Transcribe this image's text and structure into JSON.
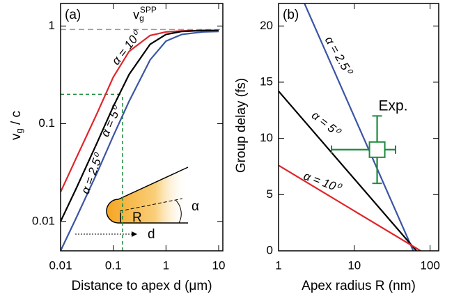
{
  "chart_data": [
    {
      "type": "line",
      "panel_label": "(a)",
      "x_label": "Distance to apex d (μm)",
      "y_label": {
        "main": "v",
        "sub": "g",
        "rest": " / c"
      },
      "xscale": "log",
      "yscale": "log",
      "xlim": [
        0.01,
        12
      ],
      "ylim": [
        0.005,
        1.7
      ],
      "xticks": [
        0.01,
        0.1,
        1,
        10
      ],
      "yticks": [
        0.01,
        0.1,
        1
      ],
      "hline": {
        "value": 0.92,
        "color": "#999999",
        "label": {
          "main": "v",
          "sub": "g",
          "sup": "SPP"
        }
      },
      "guide": {
        "x": 0.15,
        "y": 0.2,
        "color": "#1b8a3a"
      },
      "inset": {
        "R": "R",
        "alpha": "α",
        "d": "d"
      },
      "series": [
        {
          "label": "α = 10⁰",
          "color": "#e0252a",
          "x": [
            0.01,
            0.02,
            0.05,
            0.1,
            0.2,
            0.5,
            1,
            2,
            5,
            10
          ],
          "values": [
            0.02,
            0.045,
            0.13,
            0.3,
            0.55,
            0.8,
            0.87,
            0.89,
            0.9,
            0.9
          ]
        },
        {
          "label": "α = 5⁰",
          "color": "#000000",
          "x": [
            0.01,
            0.02,
            0.05,
            0.1,
            0.2,
            0.5,
            1,
            2,
            5,
            10
          ],
          "values": [
            0.01,
            0.022,
            0.065,
            0.15,
            0.32,
            0.65,
            0.82,
            0.88,
            0.9,
            0.9
          ]
        },
        {
          "label": "α = 2.5⁰",
          "color": "#3a55a4",
          "x": [
            0.01,
            0.02,
            0.05,
            0.1,
            0.2,
            0.5,
            1,
            2,
            5,
            10
          ],
          "values": [
            0.005,
            0.011,
            0.032,
            0.075,
            0.17,
            0.45,
            0.7,
            0.82,
            0.87,
            0.88
          ]
        }
      ]
    },
    {
      "type": "line",
      "panel_label": "(b)",
      "x_label": "Apex radius R (nm)",
      "y_label": {
        "main": "Group delay (fs)"
      },
      "xscale": "log",
      "yscale": "linear",
      "xlim": [
        1,
        130
      ],
      "ylim": [
        0,
        22
      ],
      "xticks": [
        1,
        10,
        100
      ],
      "yticks": [
        0,
        5,
        10,
        15,
        20
      ],
      "series": [
        {
          "label": "α = 2.5⁰",
          "color": "#3a55a4",
          "x": [
            2.2,
            60
          ],
          "values": [
            22,
            0
          ]
        },
        {
          "label": "α = 5⁰",
          "color": "#000000",
          "x": [
            1,
            66
          ],
          "values": [
            14.2,
            0
          ]
        },
        {
          "label": "α = 10⁰",
          "color": "#e0252a",
          "x": [
            1,
            75
          ],
          "values": [
            7.6,
            0
          ]
        }
      ],
      "points": [
        {
          "label": "Exp.",
          "color": "#1b8a3a",
          "x": 20,
          "y": 9,
          "xmin": 5,
          "xmax": 35,
          "ymin": 6,
          "ymax": 12
        }
      ]
    }
  ]
}
